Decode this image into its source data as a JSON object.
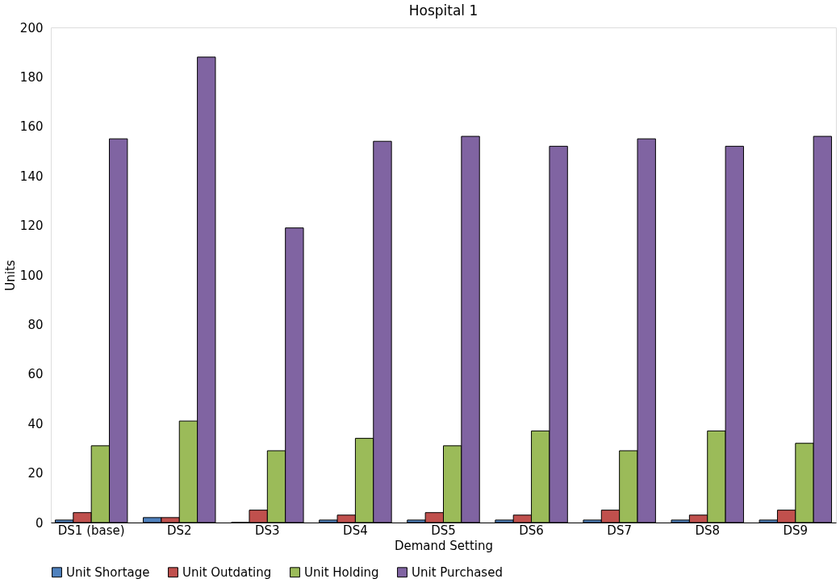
{
  "chart_data": {
    "type": "bar",
    "title": "Hospital 1",
    "xlabel": "Demand Setting",
    "ylabel": "Units",
    "categories": [
      "DS1 (base)",
      "DS2",
      "DS3",
      "DS4",
      "DS5",
      "DS6",
      "DS7",
      "DS8",
      "DS9"
    ],
    "series": [
      {
        "name": "Unit Shortage",
        "color": "#4f81bd",
        "values": [
          1,
          2,
          0,
          1,
          1,
          1,
          1,
          1,
          1
        ]
      },
      {
        "name": "Unit Outdating",
        "color": "#c0504d",
        "values": [
          4,
          2,
          5,
          3,
          4,
          3,
          5,
          3,
          5
        ]
      },
      {
        "name": "Unit Holding",
        "color": "#9bbb59",
        "values": [
          31,
          41,
          29,
          34,
          31,
          37,
          29,
          37,
          32
        ]
      },
      {
        "name": "Unit Purchased",
        "color": "#8064a2",
        "values": [
          155,
          188,
          119,
          154,
          156,
          152,
          155,
          152,
          156
        ]
      }
    ],
    "ylim": [
      0,
      200
    ],
    "yticks": [
      0,
      20,
      40,
      60,
      80,
      100,
      120,
      140,
      160,
      180,
      200
    ],
    "grid": false,
    "legend": "bottom"
  }
}
